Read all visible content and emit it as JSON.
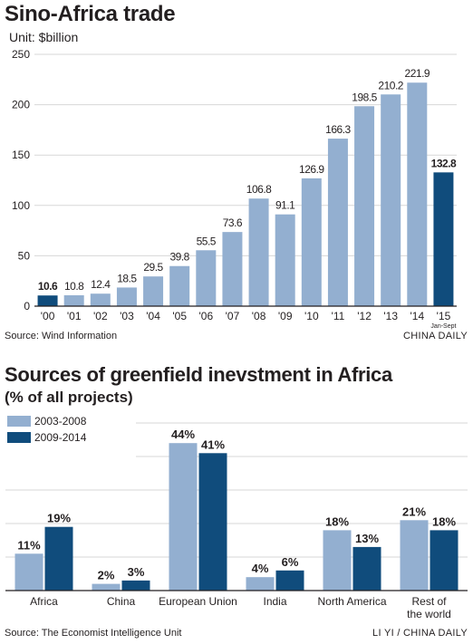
{
  "colors": {
    "light": "#93afd0",
    "dark": "#104c7c",
    "grid": "#d7d7d7",
    "axis": "#231f20"
  },
  "chart1": {
    "title": "Sino-Africa trade",
    "unit": "Unit: $billion",
    "source": "Source: Wind Information",
    "credit": "CHINA DAILY",
    "chart_data": {
      "type": "bar",
      "title": "Sino-Africa trade",
      "ylabel": "Unit: $billion",
      "categories": [
        "'00",
        "'01",
        "'02",
        "'03",
        "'04",
        "'05",
        "'06",
        "'07",
        "'08",
        "'09",
        "'10",
        "'11",
        "'12",
        "'13",
        "'14",
        "'15"
      ],
      "values": [
        10.6,
        10.8,
        12.4,
        18.5,
        29.5,
        39.8,
        55.5,
        73.6,
        106.8,
        91.1,
        126.9,
        166.3,
        198.5,
        210.2,
        221.9,
        132.8
      ],
      "value_labels": [
        "10.6",
        "10.8",
        "12.4",
        "18.5",
        "29.5",
        "39.8",
        "55.5",
        "73.6",
        "106.8",
        "91.1",
        "126.9",
        "166.3",
        "198.5",
        "210.2",
        "221.9",
        "132.8"
      ],
      "highlighted": [
        0,
        15
      ],
      "ylim": [
        0,
        250
      ],
      "yticks": [
        0,
        50,
        100,
        150,
        200,
        250
      ],
      "note_last": "Jan-Sept",
      "grid": true
    }
  },
  "chart2": {
    "title": "Sources of greenfield inevstment in Africa",
    "subtitle": "(% of all projects)",
    "source": "Source: The Economist Intelligence Unit",
    "credit": "LI YI / CHINA DAILY",
    "chart_data": {
      "type": "bar",
      "title": "Sources of greenfield inevstment in Africa",
      "subtitle": "(% of all projects)",
      "categories": [
        "Africa",
        "China",
        "European Union",
        "India",
        "North America",
        "Rest of the world"
      ],
      "category_lines": [
        [
          "Africa"
        ],
        [
          "China"
        ],
        [
          "European Union"
        ],
        [
          "India"
        ],
        [
          "North America"
        ],
        [
          "Rest of",
          "the world"
        ]
      ],
      "series": [
        {
          "name": "2003-2008",
          "values": [
            11,
            2,
            44,
            4,
            18,
            21
          ],
          "labels": [
            "11%",
            "2%",
            "44%",
            "4%",
            "18%",
            "21%"
          ]
        },
        {
          "name": "2009-2014",
          "values": [
            19,
            3,
            41,
            6,
            13,
            18
          ],
          "labels": [
            "19%",
            "3%",
            "41%",
            "6%",
            "13%",
            "18%"
          ]
        }
      ],
      "legend": "top-left",
      "grid": true
    }
  }
}
